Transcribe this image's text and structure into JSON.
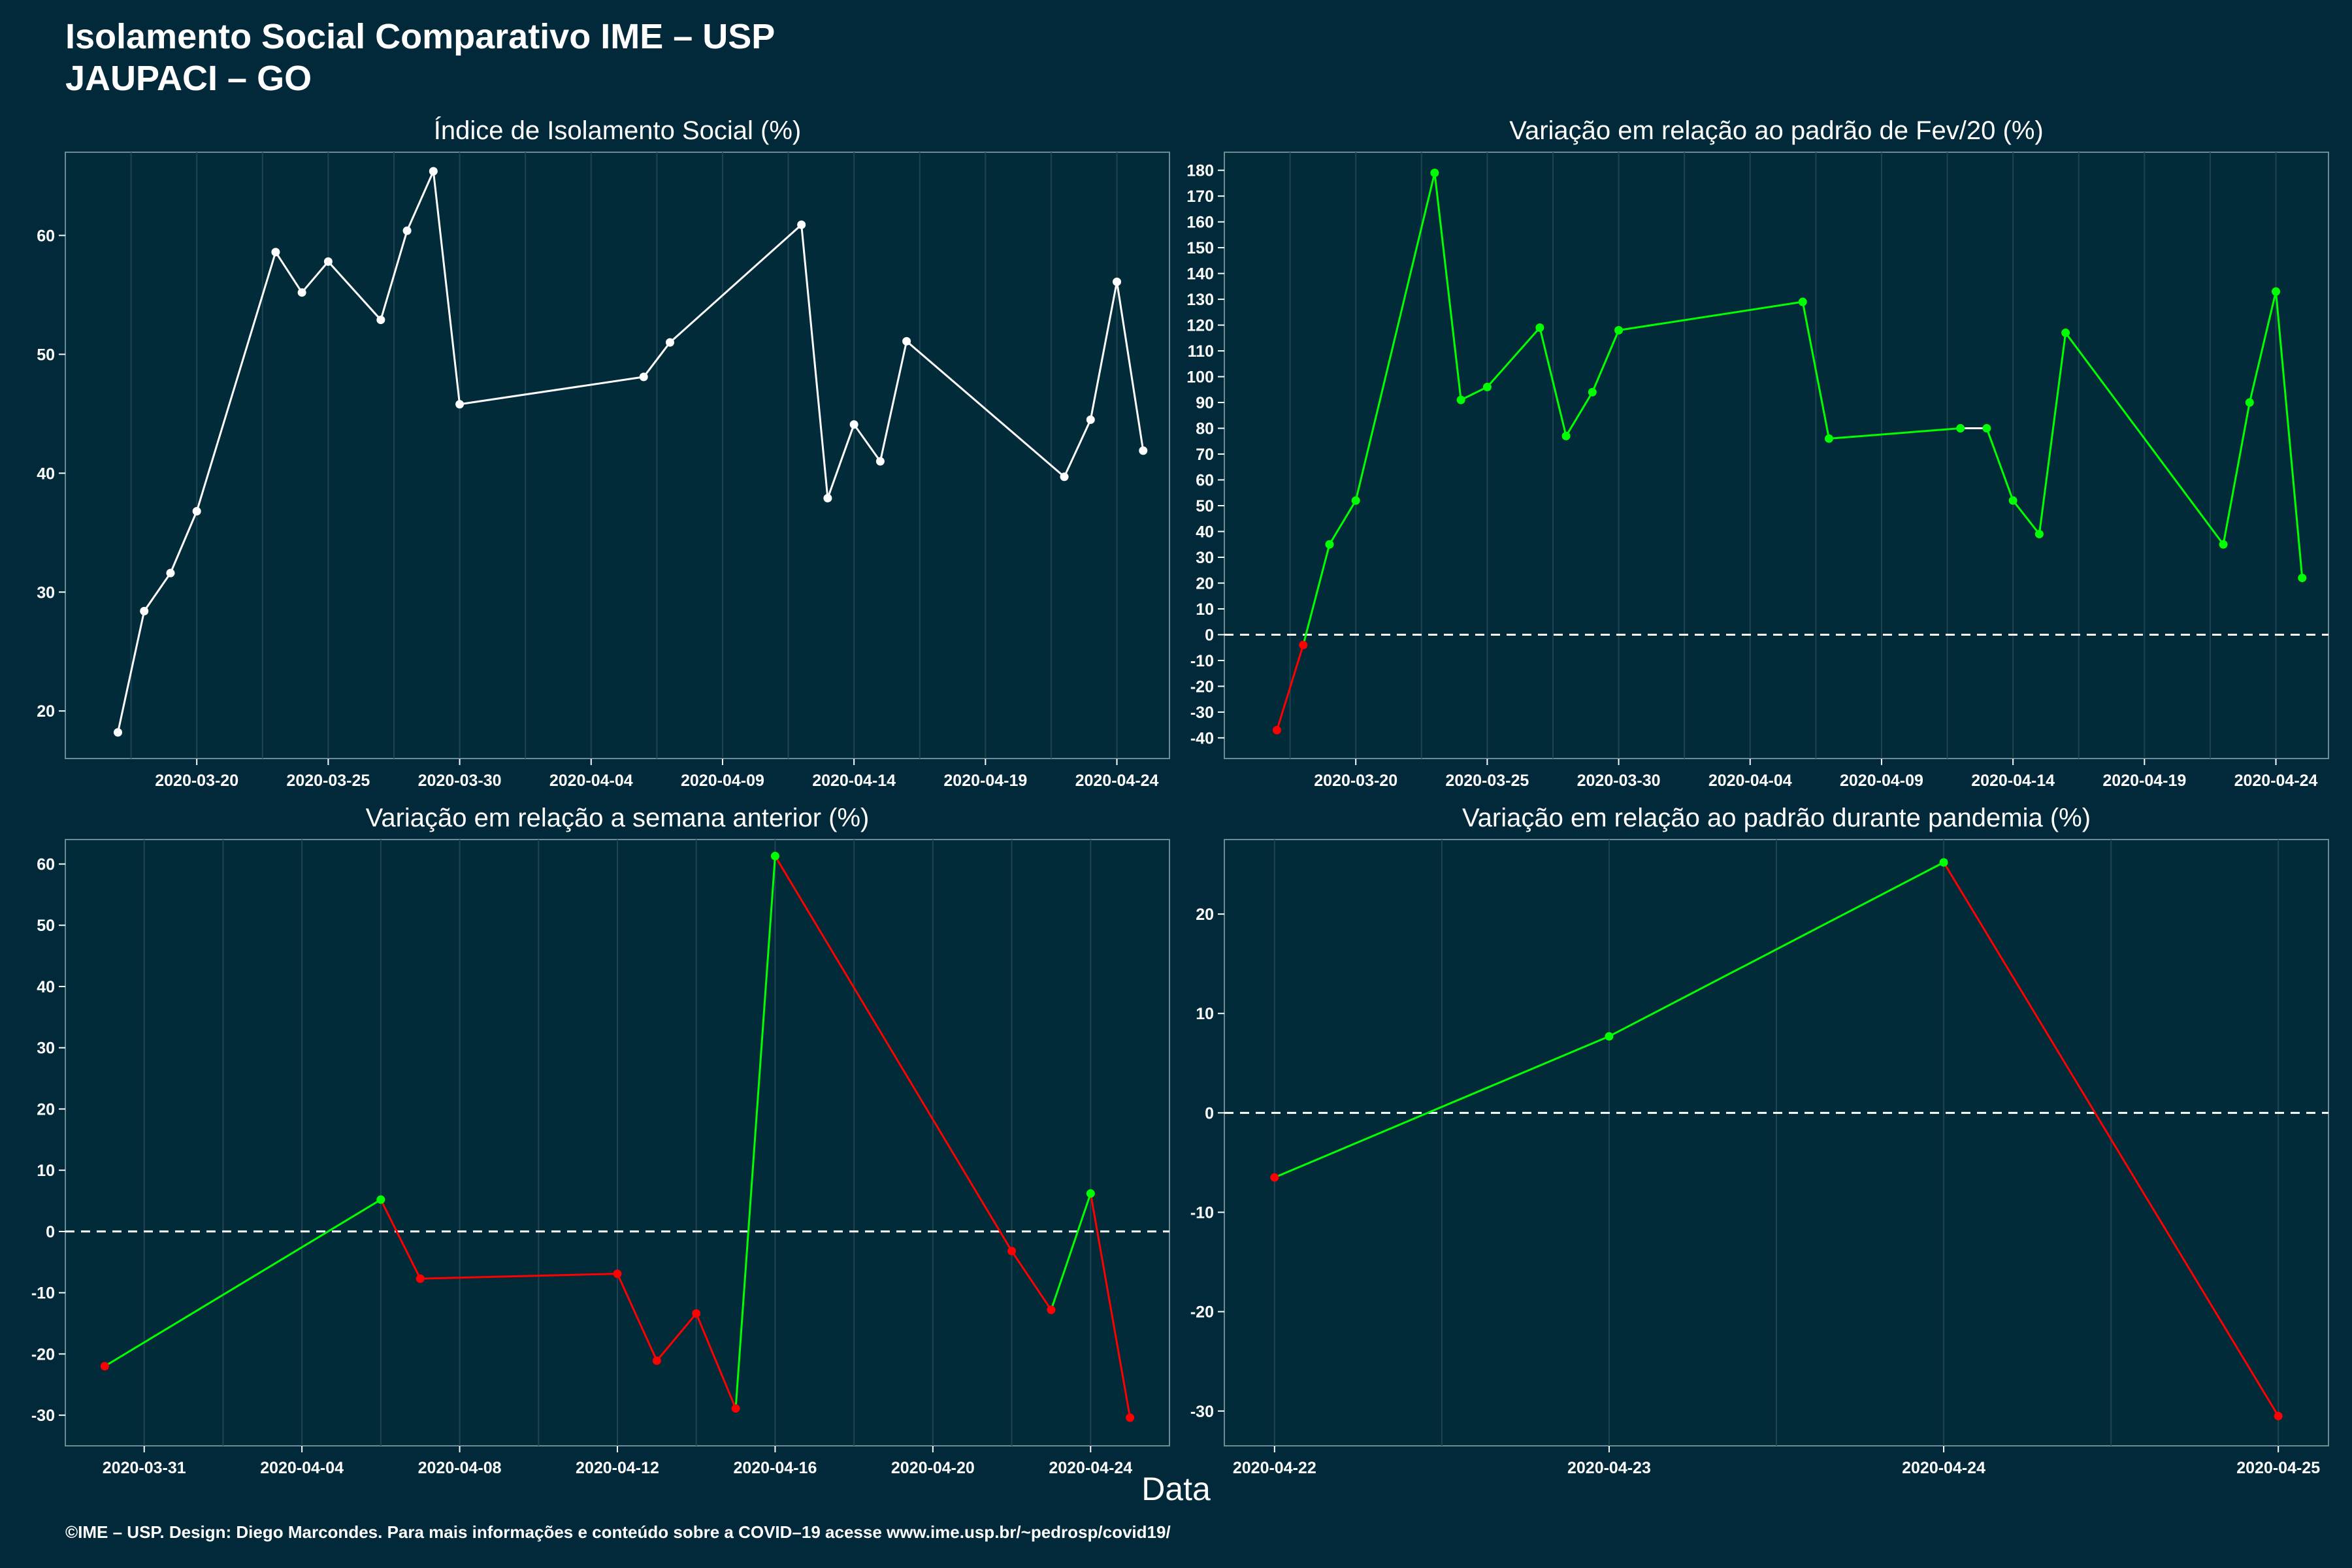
{
  "header": {
    "title_line1": "Isolamento Social Comparativo IME – USP",
    "title_line2": "JAUPACI – GO"
  },
  "x_axis_label": "Data",
  "footer": "©IME – USP. Design: Diego Marcondes. Para mais informações e conteúdo sobre a COVID–19 acesse www.ime.usp.br/~pedrosp/covid19/",
  "colors": {
    "background": "#02293a",
    "panel": "#022b3a",
    "line_neutral": "#ffffff",
    "positive": "#00ff00",
    "negative": "#ff0000"
  },
  "chart_data": [
    {
      "type": "line",
      "title": "Índice de Isolamento Social (%)",
      "xlim": [
        "2020-03-15",
        "2020-04-26"
      ],
      "ylim": [
        16,
        67
      ],
      "x_ticks": [
        "2020-03-20",
        "2020-03-25",
        "2020-03-30",
        "2020-04-04",
        "2020-04-09",
        "2020-04-14",
        "2020-04-19",
        "2020-04-24"
      ],
      "y_ticks": [
        20,
        30,
        40,
        50,
        60
      ],
      "zero_line": false,
      "points": [
        {
          "x": "2020-03-17",
          "y": 18.2
        },
        {
          "x": "2020-03-18",
          "y": 28.4
        },
        {
          "x": "2020-03-19",
          "y": 31.6
        },
        {
          "x": "2020-03-20",
          "y": 36.8
        },
        {
          "x": "2020-03-23",
          "y": 58.6
        },
        {
          "x": "2020-03-24",
          "y": 55.2
        },
        {
          "x": "2020-03-25",
          "y": 57.8
        },
        {
          "x": "2020-03-27",
          "y": 52.9
        },
        {
          "x": "2020-03-28",
          "y": 60.4
        },
        {
          "x": "2020-03-29",
          "y": 65.4
        },
        {
          "x": "2020-03-30",
          "y": 45.8
        },
        {
          "x": "2020-04-06",
          "y": 48.1
        },
        {
          "x": "2020-04-07",
          "y": 51.0
        },
        {
          "x": "2020-04-12",
          "y": 60.9
        },
        {
          "x": "2020-04-13",
          "y": 37.9
        },
        {
          "x": "2020-04-14",
          "y": 44.1
        },
        {
          "x": "2020-04-15",
          "y": 41.0
        },
        {
          "x": "2020-04-16",
          "y": 51.1
        },
        {
          "x": "2020-04-22",
          "y": 39.7
        },
        {
          "x": "2020-04-23",
          "y": 44.5
        },
        {
          "x": "2020-04-24",
          "y": 56.1
        },
        {
          "x": "2020-04-25",
          "y": 41.9
        }
      ]
    },
    {
      "type": "line",
      "title": "Variação em relação ao padrão de Fev/20 (%)",
      "xlim": [
        "2020-03-15",
        "2020-04-26"
      ],
      "ylim": [
        -48,
        187
      ],
      "x_ticks": [
        "2020-03-20",
        "2020-03-25",
        "2020-03-30",
        "2020-04-04",
        "2020-04-09",
        "2020-04-14",
        "2020-04-19",
        "2020-04-24"
      ],
      "y_ticks": [
        -40,
        -30,
        -20,
        -10,
        0,
        10,
        20,
        30,
        40,
        50,
        60,
        70,
        80,
        90,
        100,
        110,
        120,
        130,
        140,
        150,
        160,
        170,
        180
      ],
      "zero_line": true,
      "points": [
        {
          "x": "2020-03-17",
          "y": -37
        },
        {
          "x": "2020-03-18",
          "y": -4
        },
        {
          "x": "2020-03-19",
          "y": 35
        },
        {
          "x": "2020-03-20",
          "y": 52
        },
        {
          "x": "2020-03-23",
          "y": 179
        },
        {
          "x": "2020-03-24",
          "y": 91
        },
        {
          "x": "2020-03-25",
          "y": 96
        },
        {
          "x": "2020-03-27",
          "y": 119
        },
        {
          "x": "2020-03-28",
          "y": 77
        },
        {
          "x": "2020-03-29",
          "y": 94
        },
        {
          "x": "2020-03-30",
          "y": 118
        },
        {
          "x": "2020-04-06",
          "y": 129
        },
        {
          "x": "2020-04-07",
          "y": 76
        },
        {
          "x": "2020-04-12",
          "y": 80
        },
        {
          "x": "2020-04-13",
          "y": 80
        },
        {
          "x": "2020-04-14",
          "y": 52
        },
        {
          "x": "2020-04-15",
          "y": 39
        },
        {
          "x": "2020-04-16",
          "y": 117
        },
        {
          "x": "2020-04-22",
          "y": 35
        },
        {
          "x": "2020-04-23",
          "y": 90
        },
        {
          "x": "2020-04-24",
          "y": 133
        },
        {
          "x": "2020-04-25",
          "y": 22
        }
      ]
    },
    {
      "type": "line",
      "title": "Variação em relação a semana anterior (%)",
      "xlim": [
        "2020-03-29",
        "2020-04-26"
      ],
      "ylim": [
        -35,
        64
      ],
      "x_ticks": [
        "2020-03-31",
        "2020-04-04",
        "2020-04-08",
        "2020-04-12",
        "2020-04-16",
        "2020-04-20",
        "2020-04-24"
      ],
      "y_ticks": [
        -30,
        -20,
        -10,
        0,
        10,
        20,
        30,
        40,
        50,
        60
      ],
      "zero_line": true,
      "points": [
        {
          "x": "2020-03-30",
          "y": -22
        },
        {
          "x": "2020-04-06",
          "y": 5.2
        },
        {
          "x": "2020-04-07",
          "y": -7.7
        },
        {
          "x": "2020-04-12",
          "y": -6.9
        },
        {
          "x": "2020-04-13",
          "y": -21.1
        },
        {
          "x": "2020-04-14",
          "y": -13.4
        },
        {
          "x": "2020-04-15",
          "y": -28.9
        },
        {
          "x": "2020-04-16",
          "y": 61.3
        },
        {
          "x": "2020-04-22",
          "y": -3.2
        },
        {
          "x": "2020-04-23",
          "y": -12.8
        },
        {
          "x": "2020-04-24",
          "y": 6.2
        },
        {
          "x": "2020-04-25",
          "y": -30.4
        }
      ]
    },
    {
      "type": "line",
      "title": "Variação em relação ao padrão durante pandemia (%)",
      "xlim": [
        "2020-04-21.85",
        "2020-04-25.15"
      ],
      "ylim": [
        -33.5,
        27.5
      ],
      "x_ticks": [
        "2020-04-22",
        "2020-04-23",
        "2020-04-24",
        "2020-04-25"
      ],
      "y_ticks": [
        -30,
        -20,
        -10,
        0,
        10,
        20
      ],
      "zero_line": true,
      "points": [
        {
          "x": "2020-04-22",
          "y": -6.5
        },
        {
          "x": "2020-04-23",
          "y": 7.7
        },
        {
          "x": "2020-04-24",
          "y": 25.2
        },
        {
          "x": "2020-04-25",
          "y": -30.5
        }
      ]
    }
  ]
}
